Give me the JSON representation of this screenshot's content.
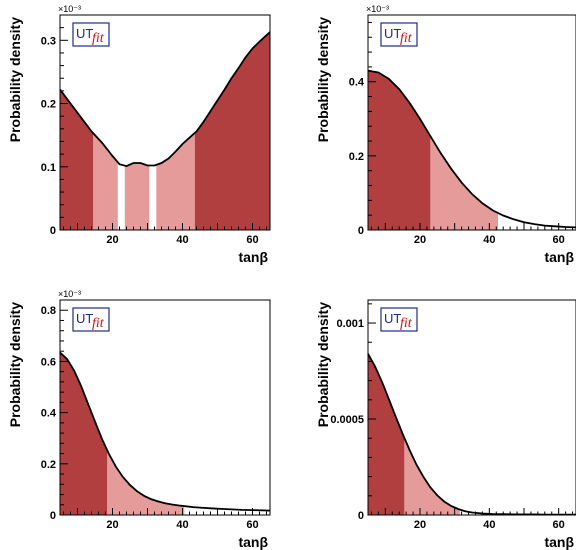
{
  "colors": {
    "dark": "#b13f3f",
    "light": "#e69b9b",
    "line": "#000000",
    "logo_border": "#1f2a8a",
    "logo_ut": "#1f2a8a",
    "logo_fit": "#cc1111"
  },
  "logo": {
    "ut": "UT",
    "fit": "fit"
  },
  "chart_data": [
    {
      "type": "area",
      "xlabel": "tanβ",
      "ylabel": "Probability density",
      "y_exponent_label": "×10⁻³",
      "xlim": [
        5,
        65
      ],
      "ylim": [
        0,
        0.00034
      ],
      "xticks": [
        20,
        40,
        60
      ],
      "yticks": [
        0,
        0.0001,
        0.0002,
        0.0003
      ],
      "ytick_labels": [
        "0",
        "0.1",
        "0.2",
        "0.3"
      ],
      "x": [
        5,
        8,
        11,
        14,
        17,
        20,
        22,
        24,
        26,
        28,
        30,
        32,
        34,
        36,
        38,
        40,
        42,
        44,
        46,
        48,
        50,
        52,
        54,
        56,
        58,
        60,
        62,
        65
      ],
      "y": [
        0.000222,
        0.0002,
        0.000178,
        0.000156,
        0.000138,
        0.000117,
        0.000104,
        0.000101,
        0.000106,
        0.000106,
        0.000102,
        0.000102,
        0.000106,
        0.000113,
        0.000124,
        0.000136,
        0.000146,
        0.000156,
        0.000171,
        0.000188,
        0.000205,
        0.000222,
        0.00024,
        0.000256,
        0.000273,
        0.000287,
        0.000298,
        0.000313
      ],
      "regions": [
        {
          "from": 5,
          "to": 14.5,
          "level": "dark"
        },
        {
          "from": 14.5,
          "to": 21.5,
          "level": "light"
        },
        {
          "from": 23.5,
          "to": 30.5,
          "level": "light"
        },
        {
          "from": 32.5,
          "to": 43.5,
          "level": "light"
        },
        {
          "from": 43.5,
          "to": 65,
          "level": "dark"
        }
      ]
    },
    {
      "type": "area",
      "xlabel": "tanβ",
      "ylabel": "Probability density",
      "y_exponent_label": "×10⁻³",
      "xlim": [
        5,
        65
      ],
      "ylim": [
        0,
        0.00058
      ],
      "xticks": [
        20,
        40,
        60
      ],
      "yticks": [
        0,
        0.0002,
        0.0004
      ],
      "ytick_labels": [
        "0",
        "0.2",
        "0.4"
      ],
      "x": [
        5,
        8,
        11,
        14,
        17,
        20,
        23,
        26,
        29,
        32,
        35,
        38,
        41,
        44,
        47,
        50,
        53,
        56,
        59,
        62,
        65
      ],
      "y": [
        0.00043,
        0.000425,
        0.000408,
        0.00038,
        0.000343,
        0.0003,
        0.000253,
        0.000207,
        0.000165,
        0.000128,
        9.7e-05,
        7.2e-05,
        5.3e-05,
        3.9e-05,
        2.9e-05,
        2.1e-05,
        1.6e-05,
        1.2e-05,
        1e-05,
        8e-06,
        7e-06
      ],
      "regions": [
        {
          "from": 5,
          "to": 23,
          "level": "dark"
        },
        {
          "from": 23,
          "to": 42.5,
          "level": "light"
        }
      ]
    },
    {
      "type": "area",
      "xlabel": "tanβ",
      "ylabel": "Probability density",
      "y_exponent_label": "×10⁻³",
      "xlim": [
        5,
        65
      ],
      "ylim": [
        0,
        0.00084
      ],
      "xticks": [
        20,
        40,
        60
      ],
      "yticks": [
        0,
        0.0002,
        0.0004,
        0.0006,
        0.0008
      ],
      "ytick_labels": [
        "0",
        "0.2",
        "0.4",
        "0.6",
        "0.8"
      ],
      "x": [
        5,
        7,
        9,
        11,
        13,
        15,
        17,
        19,
        21,
        23,
        25,
        27,
        29,
        31,
        33,
        35,
        37,
        39,
        41,
        43,
        45,
        48,
        51,
        54,
        57,
        60,
        63,
        65
      ],
      "y": [
        0.000635,
        0.00061,
        0.000565,
        0.000505,
        0.000435,
        0.000365,
        0.000297,
        0.000238,
        0.000188,
        0.000148,
        0.000117,
        9.3e-05,
        7.5e-05,
        6.2e-05,
        5.3e-05,
        4.6e-05,
        4.1e-05,
        3.7e-05,
        3.4e-05,
        3.1e-05,
        2.9e-05,
        2.6e-05,
        2.4e-05,
        2.2e-05,
        2e-05,
        1.9e-05,
        1.8e-05,
        1.7e-05
      ],
      "regions": [
        {
          "from": 5,
          "to": 18.5,
          "level": "dark"
        },
        {
          "from": 18.5,
          "to": 40.5,
          "level": "light"
        }
      ]
    },
    {
      "type": "area",
      "xlabel": "tanβ",
      "ylabel": "Probability density",
      "y_exponent_label": "",
      "xlim": [
        5,
        65
      ],
      "ylim": [
        0,
        0.00112
      ],
      "xticks": [
        20,
        40,
        60
      ],
      "yticks": [
        0,
        0.0005,
        0.001
      ],
      "ytick_labels": [
        "0",
        "0.0005",
        "0.001"
      ],
      "x": [
        5,
        7,
        9,
        11,
        13,
        15,
        17,
        19,
        21,
        23,
        25,
        27,
        29,
        31,
        33,
        35,
        38,
        41,
        44,
        47,
        50,
        53,
        56,
        59,
        62,
        65
      ],
      "y": [
        0.00084,
        0.000775,
        0.000695,
        0.000605,
        0.000512,
        0.000422,
        0.000338,
        0.000262,
        0.000198,
        0.000144,
        0.000102,
        7e-05,
        4.7e-05,
        3.1e-05,
        2e-05,
        1.3e-05,
        8e-06,
        5e-06,
        4e-06,
        3e-06,
        3e-06,
        3e-06,
        2e-06,
        2e-06,
        2e-06,
        2e-06
      ],
      "regions": [
        {
          "from": 5,
          "to": 15.5,
          "level": "dark"
        },
        {
          "from": 15.5,
          "to": 31.5,
          "level": "light"
        }
      ]
    }
  ]
}
